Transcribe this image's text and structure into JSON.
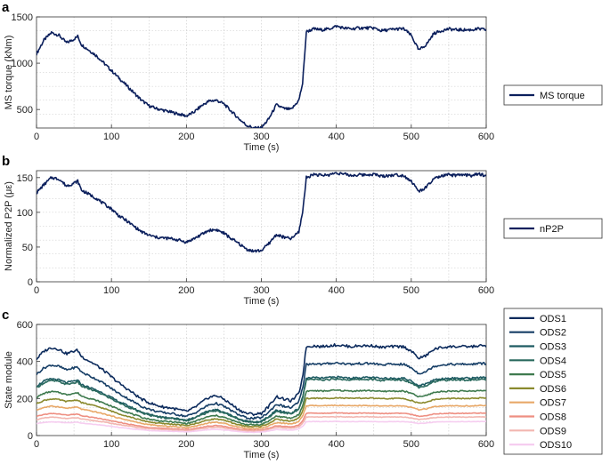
{
  "chart_data": [
    {
      "type": "line",
      "panel": "a",
      "xlabel": "Time (s)",
      "ylabel": "MS torque (kNm)",
      "xlim": [
        0,
        600
      ],
      "ylim": [
        300,
        1500
      ],
      "xticks": [
        0,
        100,
        200,
        300,
        400,
        500,
        600
      ],
      "yticks": [
        500,
        1000,
        1500
      ],
      "legend_position": "right",
      "series": [
        {
          "name": "MS torque",
          "color": "#0b1f5c",
          "points": [
            [
              0,
              1100
            ],
            [
              10,
              1250
            ],
            [
              20,
              1330
            ],
            [
              30,
              1300
            ],
            [
              40,
              1220
            ],
            [
              50,
              1260
            ],
            [
              55,
              1290
            ],
            [
              60,
              1200
            ],
            [
              70,
              1140
            ],
            [
              80,
              1080
            ],
            [
              90,
              1000
            ],
            [
              100,
              920
            ],
            [
              110,
              840
            ],
            [
              120,
              760
            ],
            [
              130,
              680
            ],
            [
              140,
              600
            ],
            [
              150,
              540
            ],
            [
              160,
              510
            ],
            [
              170,
              490
            ],
            [
              180,
              470
            ],
            [
              190,
              450
            ],
            [
              200,
              430
            ],
            [
              210,
              470
            ],
            [
              220,
              540
            ],
            [
              230,
              590
            ],
            [
              240,
              600
            ],
            [
              250,
              560
            ],
            [
              260,
              480
            ],
            [
              270,
              400
            ],
            [
              280,
              330
            ],
            [
              290,
              300
            ],
            [
              300,
              300
            ],
            [
              310,
              400
            ],
            [
              320,
              550
            ],
            [
              330,
              510
            ],
            [
              340,
              500
            ],
            [
              350,
              600
            ],
            [
              355,
              780
            ],
            [
              360,
              1340
            ],
            [
              370,
              1370
            ],
            [
              380,
              1360
            ],
            [
              390,
              1370
            ],
            [
              400,
              1400
            ],
            [
              410,
              1380
            ],
            [
              420,
              1370
            ],
            [
              430,
              1380
            ],
            [
              440,
              1380
            ],
            [
              450,
              1380
            ],
            [
              460,
              1350
            ],
            [
              470,
              1360
            ],
            [
              480,
              1370
            ],
            [
              490,
              1370
            ],
            [
              500,
              1300
            ],
            [
              510,
              1140
            ],
            [
              520,
              1200
            ],
            [
              530,
              1320
            ],
            [
              540,
              1350
            ],
            [
              550,
              1370
            ],
            [
              560,
              1360
            ],
            [
              570,
              1360
            ],
            [
              580,
              1360
            ],
            [
              590,
              1370
            ],
            [
              600,
              1360
            ]
          ]
        }
      ]
    },
    {
      "type": "line",
      "panel": "b",
      "xlabel": "Time (s)",
      "ylabel": "Normalized P2P (με)",
      "xlim": [
        0,
        600
      ],
      "ylim": [
        0,
        160
      ],
      "xticks": [
        0,
        100,
        200,
        300,
        400,
        500,
        600
      ],
      "yticks": [
        0,
        50,
        100,
        150
      ],
      "legend_position": "right",
      "series": [
        {
          "name": "nP2P",
          "color": "#0b1f5c",
          "points": [
            [
              0,
              128
            ],
            [
              10,
              140
            ],
            [
              20,
              150
            ],
            [
              30,
              148
            ],
            [
              40,
              138
            ],
            [
              50,
              142
            ],
            [
              55,
              145
            ],
            [
              60,
              132
            ],
            [
              70,
              126
            ],
            [
              80,
              120
            ],
            [
              90,
              112
            ],
            [
              100,
              105
            ],
            [
              110,
              95
            ],
            [
              120,
              88
            ],
            [
              130,
              80
            ],
            [
              140,
              72
            ],
            [
              150,
              67
            ],
            [
              160,
              64
            ],
            [
              170,
              63
            ],
            [
              180,
              62
            ],
            [
              190,
              60
            ],
            [
              200,
              57
            ],
            [
              210,
              62
            ],
            [
              220,
              68
            ],
            [
              230,
              74
            ],
            [
              240,
              75
            ],
            [
              250,
              70
            ],
            [
              260,
              62
            ],
            [
              270,
              55
            ],
            [
              280,
              47
            ],
            [
              290,
              44
            ],
            [
              300,
              45
            ],
            [
              310,
              55
            ],
            [
              320,
              68
            ],
            [
              330,
              64
            ],
            [
              340,
              62
            ],
            [
              350,
              72
            ],
            [
              355,
              100
            ],
            [
              360,
              150
            ],
            [
              370,
              155
            ],
            [
              380,
              153
            ],
            [
              390,
              154
            ],
            [
              400,
              157
            ],
            [
              410,
              155
            ],
            [
              420,
              153
            ],
            [
              430,
              154
            ],
            [
              440,
              154
            ],
            [
              450,
              155
            ],
            [
              460,
              152
            ],
            [
              470,
              153
            ],
            [
              480,
              154
            ],
            [
              490,
              153
            ],
            [
              500,
              145
            ],
            [
              510,
              130
            ],
            [
              520,
              136
            ],
            [
              530,
              148
            ],
            [
              540,
              152
            ],
            [
              550,
              154
            ],
            [
              560,
              153
            ],
            [
              570,
              154
            ],
            [
              580,
              153
            ],
            [
              590,
              155
            ],
            [
              600,
              153
            ]
          ]
        }
      ]
    },
    {
      "type": "line",
      "panel": "c",
      "xlabel": "Time (s)",
      "ylabel": "State module",
      "xlim": [
        0,
        600
      ],
      "ylim": [
        0,
        600
      ],
      "xticks": [
        0,
        100,
        200,
        300,
        400,
        500,
        600
      ],
      "yticks": [
        0,
        200,
        400,
        600
      ],
      "legend_position": "right",
      "base_profile_points": [
        [
          0,
          0.86
        ],
        [
          10,
          0.95
        ],
        [
          20,
          0.99
        ],
        [
          30,
          0.97
        ],
        [
          40,
          0.92
        ],
        [
          50,
          0.95
        ],
        [
          55,
          0.96
        ],
        [
          60,
          0.89
        ],
        [
          70,
          0.84
        ],
        [
          80,
          0.79
        ],
        [
          90,
          0.73
        ],
        [
          100,
          0.66
        ],
        [
          110,
          0.59
        ],
        [
          120,
          0.53
        ],
        [
          130,
          0.47
        ],
        [
          140,
          0.41
        ],
        [
          150,
          0.37
        ],
        [
          160,
          0.34
        ],
        [
          170,
          0.32
        ],
        [
          180,
          0.31
        ],
        [
          190,
          0.29
        ],
        [
          200,
          0.27
        ],
        [
          210,
          0.31
        ],
        [
          220,
          0.37
        ],
        [
          230,
          0.43
        ],
        [
          240,
          0.45
        ],
        [
          250,
          0.41
        ],
        [
          260,
          0.35
        ],
        [
          270,
          0.29
        ],
        [
          280,
          0.25
        ],
        [
          290,
          0.24
        ],
        [
          300,
          0.25
        ],
        [
          310,
          0.33
        ],
        [
          320,
          0.44
        ],
        [
          330,
          0.41
        ],
        [
          340,
          0.39
        ],
        [
          350,
          0.47
        ],
        [
          355,
          0.66
        ],
        [
          360,
          1.0
        ],
        [
          370,
          1.01
        ],
        [
          380,
          1.0
        ],
        [
          390,
          1.01
        ],
        [
          400,
          1.02
        ],
        [
          410,
          1.01
        ],
        [
          420,
          1.0
        ],
        [
          430,
          1.01
        ],
        [
          440,
          1.01
        ],
        [
          450,
          1.01
        ],
        [
          460,
          0.99
        ],
        [
          470,
          1.0
        ],
        [
          480,
          1.0
        ],
        [
          490,
          1.0
        ],
        [
          500,
          0.95
        ],
        [
          510,
          0.87
        ],
        [
          520,
          0.9
        ],
        [
          530,
          0.97
        ],
        [
          540,
          0.99
        ],
        [
          550,
          1.0
        ],
        [
          560,
          1.0
        ],
        [
          570,
          1.0
        ],
        [
          580,
          1.0
        ],
        [
          590,
          1.01
        ],
        [
          600,
          1.01
        ]
      ],
      "series": [
        {
          "name": "ODS1",
          "color": "#0b2a5c",
          "scale": 480
        },
        {
          "name": "ODS2",
          "color": "#163e66",
          "scale": 385
        },
        {
          "name": "ODS3",
          "color": "#1d5a62",
          "scale": 310
        },
        {
          "name": "ODS4",
          "color": "#2a6a5e",
          "scale": 300
        },
        {
          "name": "ODS5",
          "color": "#3e7a4e",
          "scale": 240
        },
        {
          "name": "ODS6",
          "color": "#8a8a2e",
          "scale": 200
        },
        {
          "name": "ODS7",
          "color": "#e8a868",
          "scale": 160
        },
        {
          "name": "ODS8",
          "color": "#ee8f82",
          "scale": 120
        },
        {
          "name": "ODS9",
          "color": "#f2b6b0",
          "scale": 100
        },
        {
          "name": "ODS10",
          "color": "#f6cdf0",
          "scale": 75
        }
      ]
    }
  ]
}
